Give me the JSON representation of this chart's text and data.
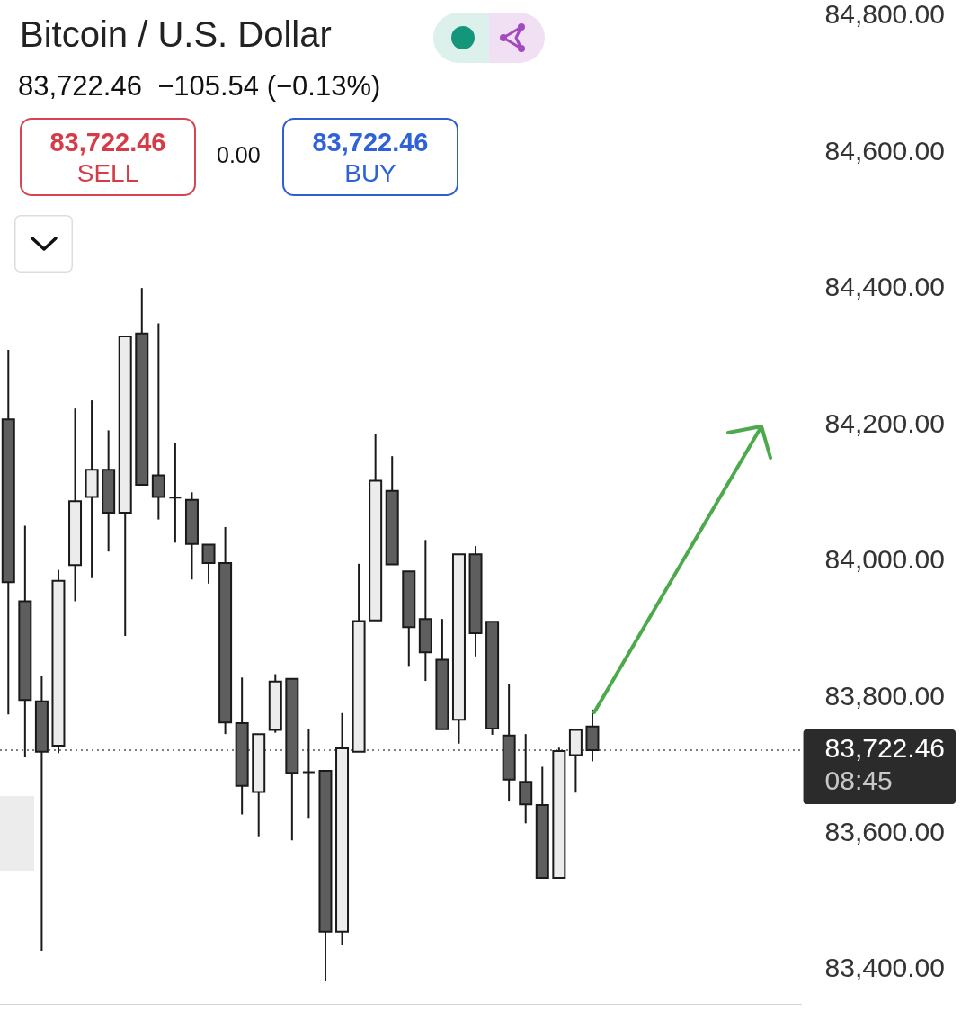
{
  "chart_data": {
    "type": "candlestick",
    "title": "Bitcoin / U.S. Dollar",
    "subtitle": "83,722.46  −105.54 (−0.13%)",
    "annotations": [
      "83,722.46",
      "SELL",
      "0.00",
      "83,722.46",
      "BUY"
    ],
    "categories": [
      null,
      null,
      null,
      null,
      null,
      null,
      null,
      null,
      null,
      null,
      null,
      null,
      null,
      null,
      null,
      null,
      null,
      null,
      null,
      null,
      null,
      null,
      null,
      null,
      null,
      null,
      null,
      null,
      null,
      null,
      null,
      null,
      null,
      null,
      null,
      null,
      null,
      null,
      null,
      null,
      null,
      null,
      null,
      null,
      null,
      null,
      null,
      null
    ],
    "ohlc": [
      [
        84208,
        84310,
        83775,
        83969
      ],
      [
        83941,
        84052,
        83712,
        83796
      ],
      [
        83794,
        83832,
        83428,
        83720
      ],
      [
        83729,
        83987,
        83718,
        83971
      ],
      [
        83994,
        84224,
        83941,
        84088
      ],
      [
        84094,
        84236,
        83975,
        84134
      ],
      [
        84134,
        84192,
        84014,
        84071
      ],
      [
        84071,
        84330,
        83890,
        84330
      ],
      [
        84334,
        84401,
        84112,
        84112
      ],
      [
        84126,
        84349,
        84061,
        84094
      ],
      [
        84093,
        84173,
        84027,
        84093
      ],
      [
        84090,
        84101,
        83973,
        84025
      ],
      [
        84024,
        84024,
        83967,
        83997
      ],
      [
        83997,
        84050,
        83746,
        83763
      ],
      [
        83762,
        83829,
        83628,
        83670
      ],
      [
        83661,
        83746,
        83596,
        83746
      ],
      [
        83752,
        83834,
        83748,
        83823
      ],
      [
        83827,
        83827,
        83590,
        83689
      ],
      [
        83690,
        83753,
        83623,
        83690
      ],
      [
        83692,
        83692,
        83383,
        83456
      ],
      [
        83456,
        83777,
        83436,
        83725
      ],
      [
        83720,
        83996,
        83720,
        83912
      ],
      [
        83913,
        84186,
        83913,
        84118
      ],
      [
        84103,
        84154,
        83995,
        83995
      ],
      [
        83985,
        83985,
        83846,
        83903
      ],
      [
        83915,
        84031,
        83824,
        83866
      ],
      [
        83855,
        83915,
        83753,
        83753
      ],
      [
        83767,
        84010,
        83732,
        84010
      ],
      [
        84010,
        84022,
        83860,
        83894
      ],
      [
        83911,
        83911,
        83745,
        83754
      ],
      [
        83744,
        83819,
        83647,
        83679
      ],
      [
        83676,
        83746,
        83615,
        83643
      ],
      [
        83642,
        83698,
        83535,
        83535
      ],
      [
        83535,
        83726,
        83535,
        83721
      ],
      [
        83715,
        83752,
        83660,
        83752
      ],
      [
        83757,
        83782,
        83706,
        83722.46
      ],
      null,
      null,
      null,
      null,
      null,
      null,
      null,
      null,
      null,
      null,
      null,
      null
    ],
    "colors": [
      "#5e5e5e",
      "#5e5e5e",
      "#5e5e5e",
      "#ececec",
      "#ececec",
      "#ececec",
      "#5e5e5e",
      "#ececec",
      "#5e5e5e",
      "#5e5e5e",
      "#1a1a1a",
      "#5e5e5e",
      "#5e5e5e",
      "#5e5e5e",
      "#5e5e5e",
      "#ececec",
      "#ececec",
      "#5e5e5e",
      "#1a1a1a",
      "#5e5e5e",
      "#ececec",
      "#ececec",
      "#ececec",
      "#5e5e5e",
      "#5e5e5e",
      "#5e5e5e",
      "#5e5e5e",
      "#ececec",
      "#5e5e5e",
      "#5e5e5e",
      "#5e5e5e",
      "#5e5e5e",
      "#5e5e5e",
      "#ececec",
      "#ececec",
      "#5e5e5e",
      null,
      null,
      null,
      null,
      null,
      null,
      null,
      null,
      null,
      null,
      null,
      null
    ],
    "ylim": [
      83350,
      84800
    ],
    "yticks": [
      {
        "value": 83400,
        "label": "83,400.00"
      },
      {
        "value": 83600,
        "label": "83,600.00"
      },
      {
        "value": 83800,
        "label": "83,800.00"
      },
      {
        "value": 84000,
        "label": "84,000.00"
      },
      {
        "value": 84200,
        "label": "84,200.00"
      },
      {
        "value": 84400,
        "label": "84,400.00"
      },
      {
        "value": 84600,
        "label": "84,600.00"
      },
      {
        "value": 84800,
        "label": "84,800.00"
      }
    ],
    "ref_lines": [
      {
        "axis": "y",
        "value": 83722.46,
        "label": "83,722.46 08:45",
        "color": "#555555",
        "line_style": "dotted"
      }
    ],
    "tick_labels": "y",
    "grid": false,
    "legend": false
  }
}
